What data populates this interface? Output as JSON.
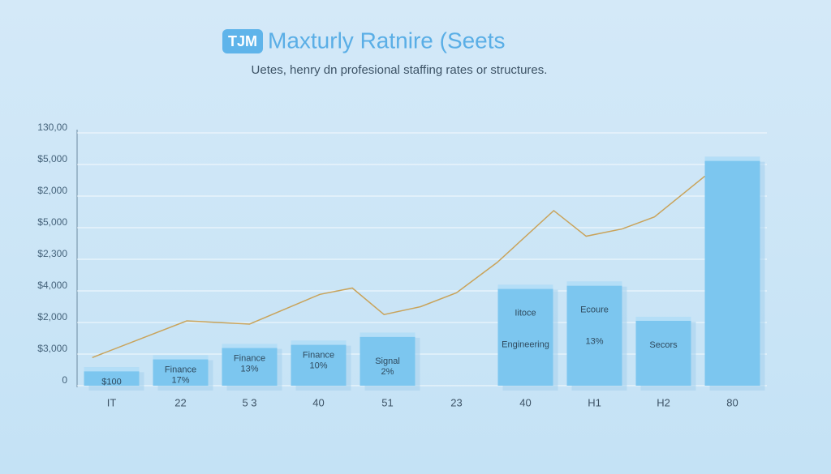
{
  "chart_data": {
    "type": "bar",
    "badge": "TJM",
    "title": "Maxturly Ratnire (Seets",
    "subtitle": "Uetes, henry dn profesional staffing rates or structures.",
    "categories": [
      "IT",
      "22",
      "5 3",
      "40",
      "51",
      "23",
      "40",
      "H1",
      "H2",
      "80"
    ],
    "series": [
      {
        "type": "bar",
        "color": "#7cc6ef",
        "values": [
          0.58,
          0.96,
          1.32,
          1.42,
          1.67,
          null,
          3.19,
          3.29,
          2.18,
          7.24
        ]
      },
      {
        "type": "line",
        "color": "#c9a35a",
        "x": [
          -0.28,
          1.09,
          2.0,
          3.02,
          3.49,
          3.95,
          4.48,
          5.0,
          5.59,
          6.41,
          6.88,
          7.4,
          7.87,
          8.6
        ],
        "values": [
          0.89,
          2.05,
          1.95,
          2.89,
          3.09,
          2.25,
          2.5,
          2.94,
          3.9,
          5.54,
          4.73,
          4.96,
          5.34,
          6.63
        ]
      }
    ],
    "bar_labels": [
      [
        "$100"
      ],
      [
        "Finance",
        "17%"
      ],
      [
        "Finance",
        "13%"
      ],
      [
        "Finance",
        "10%"
      ],
      [
        "Signal",
        "2%"
      ],
      null,
      [
        "Iitoce",
        "Engineering"
      ],
      [
        "Ecoure",
        "13%"
      ],
      [
        "Secors"
      ],
      null
    ],
    "xlim": [
      -0.5,
      9.5
    ],
    "ylim": [
      0,
      8
    ],
    "yticks": [
      {
        "value": 0,
        "label": "0"
      },
      {
        "value": 1,
        "label": "$3,000"
      },
      {
        "value": 2,
        "label": "$2,000"
      },
      {
        "value": 3,
        "label": "$4,000"
      },
      {
        "value": 4,
        "label": "$2,300"
      },
      {
        "value": 5,
        "label": "$5,000"
      },
      {
        "value": 6,
        "label": "$2,000"
      },
      {
        "value": 7,
        "label": "$5,000"
      },
      {
        "value": 8,
        "label": "130,00"
      }
    ],
    "grid": true
  }
}
